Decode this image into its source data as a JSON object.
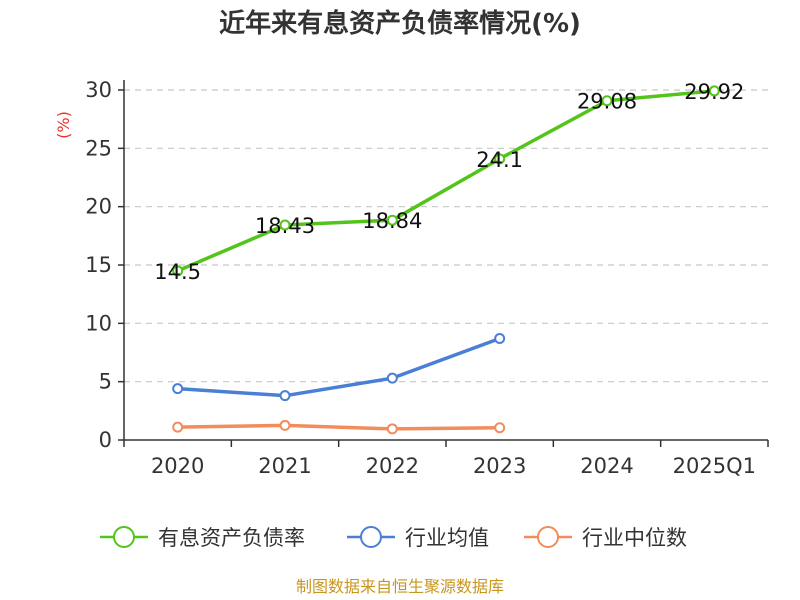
{
  "chart_data": {
    "type": "line",
    "title": "近年来有息资产负债率情况(%)",
    "ylabel": "(%)",
    "categories": [
      "2020",
      "2021",
      "2022",
      "2023",
      "2024",
      "2025Q1"
    ],
    "ylim": [
      0,
      30
    ],
    "yticks": [
      0,
      5,
      10,
      15,
      20,
      25,
      30
    ],
    "grid": true,
    "legend_position": "bottom",
    "series": [
      {
        "name": "有息资产负债率",
        "color": "#52c41a",
        "values": [
          14.5,
          18.43,
          18.84,
          24.1,
          29.08,
          29.92
        ],
        "labels": [
          "14.5",
          "18.43",
          "18.84",
          "24.1",
          "29.08",
          "29.92"
        ]
      },
      {
        "name": "行业均值",
        "color": "#4a7fd6",
        "values": [
          4.4,
          3.8,
          5.3,
          8.7,
          null,
          null
        ]
      },
      {
        "name": "行业中位数",
        "color": "#f28c5a",
        "values": [
          1.1,
          1.25,
          0.95,
          1.05,
          null,
          null
        ]
      }
    ],
    "source": "制图数据来自恒生聚源数据库"
  }
}
